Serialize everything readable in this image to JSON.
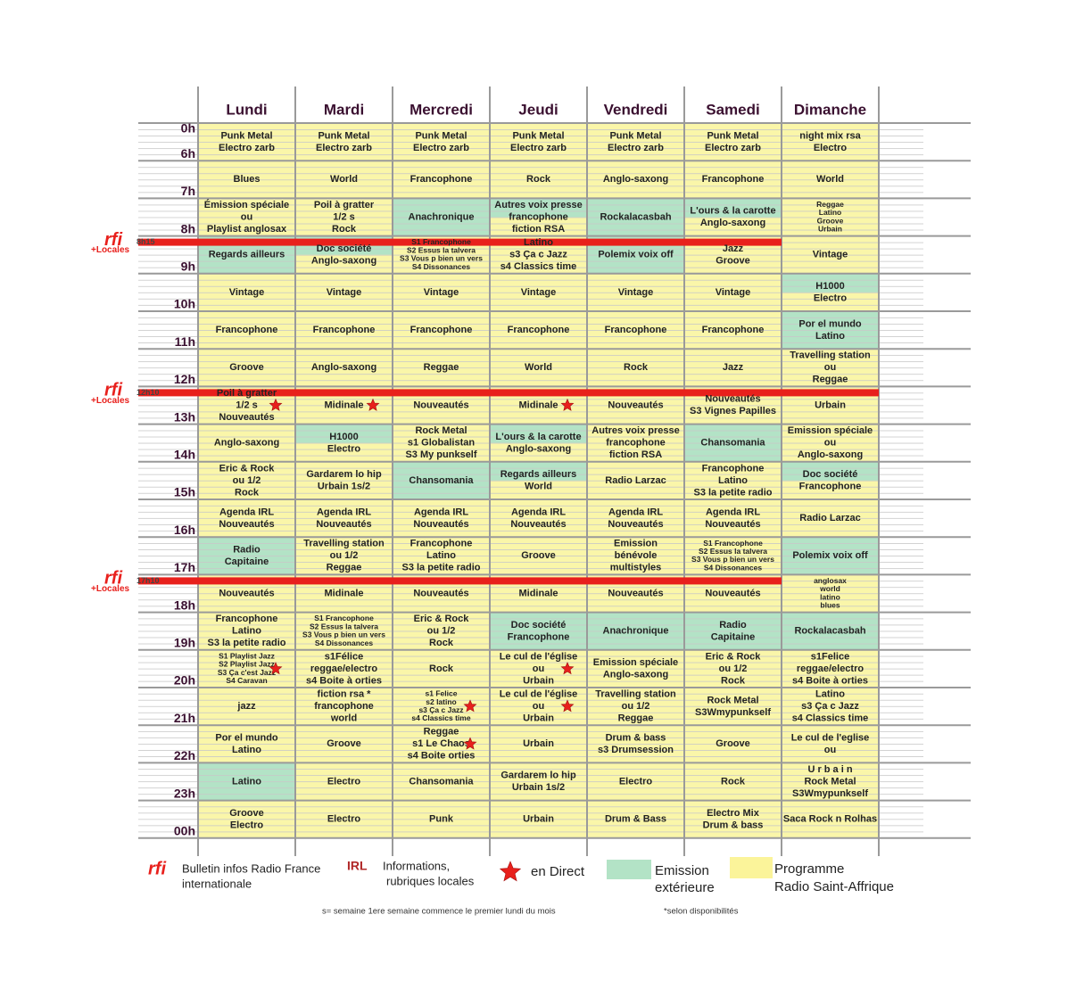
{
  "days": [
    {
      "name": "Lundi",
      "cells": [
        [
          "Punk Metal",
          "Electro  zarb"
        ],
        [
          "Blues"
        ],
        [
          "Émission spéciale",
          "ou",
          "Playlist anglosax"
        ],
        [
          "Regards ailleurs"
        ],
        [
          "Vintage"
        ],
        [
          "Francophone"
        ],
        [
          "Groove"
        ],
        [
          "Poil à gratter",
          "1/2 s",
          "Nouveautés"
        ],
        [
          "Anglo-saxong"
        ],
        [
          "Eric & Rock",
          "ou 1/2",
          "Rock"
        ],
        [
          "Agenda IRL",
          "Nouveautés"
        ],
        [
          "Radio",
          "Capitaine"
        ],
        [
          "Nouveautés"
        ],
        [
          "Francophone",
          "Latino",
          "S3 la petite radio"
        ],
        [
          "S1  Playlist Jazz",
          "S2  Playlist Jazz",
          "S3  Ça c'est Jazz",
          "S4  Caravan"
        ],
        [
          "jazz"
        ],
        [
          "Por el mundo",
          "Latino"
        ],
        [
          "Latino"
        ],
        [
          "Groove",
          "Electro"
        ]
      ]
    },
    {
      "name": "Mardi",
      "cells": [
        [
          "Punk Metal",
          "Electro  zarb"
        ],
        [
          "World"
        ],
        [
          "Poil à gratter",
          "1/2 s",
          "Rock"
        ],
        [
          "Doc société",
          "Anglo-saxong"
        ],
        [
          "Vintage"
        ],
        [
          "Francophone"
        ],
        [
          "Anglo-saxong"
        ],
        [
          "Midinale"
        ],
        [
          "H1000",
          "Electro"
        ],
        [
          "Gardarem lo hip",
          "Urbain 1s/2"
        ],
        [
          "Agenda IRL",
          "Nouveautés"
        ],
        [
          "Travelling station",
          "ou 1/2",
          "Reggae"
        ],
        [
          "Midinale"
        ],
        [
          "S1      Francophone",
          "S2  Essus la talvera",
          "S3  Vous p bien un vers",
          "S4  Dissonances"
        ],
        [
          "s1Félice",
          "reggae/electro",
          "s4 Boite à orties"
        ],
        [
          "fiction rsa *",
          "francophone",
          "world"
        ],
        [
          "Groove"
        ],
        [
          "Electro"
        ],
        [
          "Electro"
        ]
      ]
    },
    {
      "name": "Mercredi",
      "cells": [
        [
          "Punk Metal",
          "Electro  zarb"
        ],
        [
          "Francophone"
        ],
        [
          "Anachronique"
        ],
        [
          "S1      Francophone",
          "S2  Essus la talvera",
          "S3  Vous p bien un vers",
          "S4  Dissonances"
        ],
        [
          "Vintage"
        ],
        [
          "Francophone"
        ],
        [
          "Reggae"
        ],
        [
          "Nouveautés"
        ],
        [
          "Rock Metal",
          "s1 Globalistan",
          "S3 My punkself"
        ],
        [
          "Chansomania"
        ],
        [
          "Agenda IRL",
          "Nouveautés"
        ],
        [
          "Francophone",
          "Latino",
          "S3 la petite radio"
        ],
        [
          "Nouveautés"
        ],
        [
          "Eric & Rock",
          "ou 1/2",
          "Rock"
        ],
        [
          "Rock"
        ],
        [
          "s1 Felice",
          "s2 latino",
          "s3 Ça c Jazz",
          "s4 Classics time"
        ],
        [
          "Reggae",
          "s1 Le Chaos",
          "s4 Boite orties"
        ],
        [
          "Chansomania"
        ],
        [
          "Punk"
        ]
      ]
    },
    {
      "name": "Jeudi",
      "cells": [
        [
          "Punk Metal",
          "Electro  zarb"
        ],
        [
          "Rock"
        ],
        [
          "Autres voix presse",
          "francophone",
          "fiction RSA"
        ],
        [
          "Latino",
          "s3 Ça c Jazz",
          "s4 Classics time"
        ],
        [
          "Vintage"
        ],
        [
          "Francophone"
        ],
        [
          "World"
        ],
        [
          "Midinale"
        ],
        [
          "L'ours & la carotte",
          "Anglo-saxong"
        ],
        [
          "Regards ailleurs",
          "World"
        ],
        [
          "Agenda IRL",
          "Nouveautés"
        ],
        [
          "Groove"
        ],
        [
          "Midinale"
        ],
        [
          "Doc société",
          "Francophone"
        ],
        [
          "Le cul de l'église",
          "ou",
          "Urbain"
        ],
        [
          "Le cul de l'église",
          "ou",
          "Urbain"
        ],
        [
          "Urbain"
        ],
        [
          "Gardarem lo hip",
          "Urbain 1s/2"
        ],
        [
          "Urbain"
        ]
      ]
    },
    {
      "name": "Vendredi",
      "cells": [
        [
          "Punk Metal",
          "Electro  zarb"
        ],
        [
          "Anglo-saxong"
        ],
        [
          "Rockalacasbah"
        ],
        [
          "Polemix voix off"
        ],
        [
          "Vintage"
        ],
        [
          "Francophone"
        ],
        [
          "Rock"
        ],
        [
          "Nouveautés"
        ],
        [
          "Autres voix presse",
          "francophone",
          "fiction RSA"
        ],
        [
          "Radio Larzac"
        ],
        [
          "Agenda IRL",
          "Nouveautés"
        ],
        [
          "Emission",
          "bénévole",
          "multistyles"
        ],
        [
          "Nouveautés"
        ],
        [
          "Anachronique"
        ],
        [
          "Emission spéciale",
          "Anglo-saxong"
        ],
        [
          "Travelling station",
          "ou 1/2",
          "Reggae"
        ],
        [
          "Drum & bass",
          "s3 Drumsession"
        ],
        [
          "Electro"
        ],
        [
          "Drum & Bass"
        ]
      ]
    },
    {
      "name": "Samedi",
      "cells": [
        [
          "Punk Metal",
          "Electro  zarb"
        ],
        [
          "Francophone"
        ],
        [
          "L'ours & la carotte",
          "Anglo-saxong"
        ],
        [
          "Jazz",
          "Groove"
        ],
        [
          "Vintage"
        ],
        [
          "Francophone"
        ],
        [
          "Jazz"
        ],
        [
          "Nouveautés",
          "S3  Vignes Papilles"
        ],
        [
          "Chansomania"
        ],
        [
          "Francophone",
          "Latino",
          "S3 la petite radio"
        ],
        [
          "Agenda IRL",
          "Nouveautés"
        ],
        [
          "S1      Francophone",
          "S2  Essus la talvera",
          "S3  Vous p bien un vers",
          "S4  Dissonances"
        ],
        [
          "Nouveautés"
        ],
        [
          "Radio",
          "Capitaine"
        ],
        [
          "Eric & Rock",
          "ou 1/2",
          "Rock"
        ],
        [
          "Rock Metal",
          "S3Wmypunkself"
        ],
        [
          "Groove"
        ],
        [
          "Rock"
        ],
        [
          "Electro Mix",
          "Drum & bass"
        ]
      ]
    },
    {
      "name": "Dimanche",
      "cells": [
        [
          "night mix rsa",
          "Electro"
        ],
        [
          "World"
        ],
        [
          "Reggae",
          "Latino",
          "Groove",
          "Urbain"
        ],
        [
          "Vintage"
        ],
        [
          "H1000",
          "Electro"
        ],
        [
          "Por el mundo",
          "Latino"
        ],
        [
          "Travelling station",
          "ou",
          "Reggae"
        ],
        [
          "Urbain"
        ],
        [
          "Emission spéciale",
          "ou",
          "Anglo-saxong"
        ],
        [
          "Doc société",
          "Francophone"
        ],
        [
          "Radio Larzac"
        ],
        [
          "Polemix voix off"
        ],
        [
          "anglosax",
          "world",
          "latino",
          "blues"
        ],
        [
          "Rockalacasbah"
        ],
        [
          "s1Felice",
          "reggae/electro",
          "s4 Boite à orties"
        ],
        [
          "Latino",
          "s3 Ça c Jazz",
          "s4 Classics time"
        ],
        [
          "Le cul de l'eglise",
          "ou"
        ],
        [
          "U  r  b  a  i  n",
          "Rock Metal",
          "S3Wmypunkself"
        ],
        [
          "Saca Rock n Rolhas"
        ]
      ]
    }
  ],
  "hours": [
    "0h",
    "6h",
    "7h",
    "8h",
    "9h",
    "10h",
    "11h",
    "12h",
    "13h",
    "14h",
    "15h",
    "16h",
    "17h",
    "18h",
    "19h",
    "20h",
    "21h",
    "22h",
    "23h",
    "00h"
  ],
  "rfi_breaks": [
    {
      "logo": "rfi",
      "time": "8h15",
      "label": "+Locales"
    },
    {
      "logo": "rfi",
      "time": "12h10",
      "label": "+Locales"
    },
    {
      "logo": "rfi",
      "time": "17h10",
      "label": "+Locales"
    }
  ],
  "legend": [
    {
      "symbol": "rfi",
      "text": [
        "Bulletin infos Radio France",
        "internationale"
      ]
    },
    {
      "symbol": "IRL",
      "text": [
        "Informations,",
        "rubriques locales"
      ]
    },
    {
      "text": [
        "en Direct"
      ]
    },
    {
      "text": [
        "Emission",
        "extérieure"
      ]
    },
    {
      "text": [
        "Programme",
        "Radio Saint-Affrique"
      ]
    }
  ],
  "notes": [
    "s= semaine  1ere semaine commence le  premier lundi du mois",
    "*selon disponibilités"
  ]
}
